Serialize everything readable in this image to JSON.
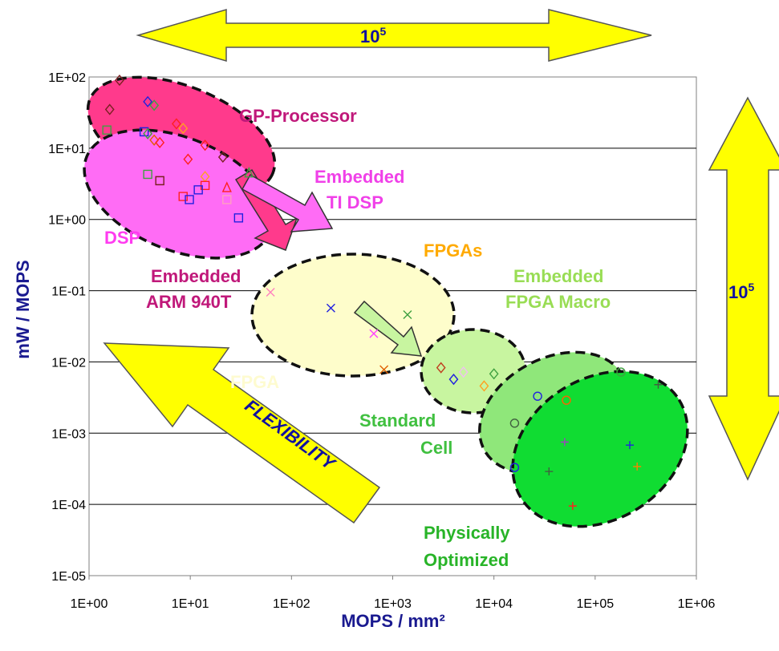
{
  "chart_data": {
    "type": "scatter",
    "xlabel": "MOPS / mm²",
    "ylabel": "mW / MOPS",
    "x_scale": "log",
    "y_scale": "log",
    "xlim": [
      1,
      1000000
    ],
    "ylim": [
      1e-05,
      100
    ],
    "grid": "horizontal",
    "x_ticks": [
      "1E+00",
      "1E+01",
      "1E+02",
      "1E+03",
      "1E+04",
      "1E+05",
      "1E+06"
    ],
    "y_ticks": [
      "1E+02",
      "1E+01",
      "1E+00",
      "1E-01",
      "1E-02",
      "1E-03",
      "1E-04",
      "1E-05"
    ],
    "regions": [
      {
        "name": "GP-Processor",
        "color": "#ff3a8c"
      },
      {
        "name": "DSP",
        "color": "#ff6cf5"
      },
      {
        "name": "FPGAs",
        "color": "#fefdcb"
      },
      {
        "name": "Embedded FPGA Macro",
        "color": "#c8f5a0"
      },
      {
        "name": "Standard Cell",
        "color": "#8fe77a"
      },
      {
        "name": "Physically Optimized",
        "color": "#10dc32"
      }
    ],
    "labels": {
      "gp": "GP-Processor",
      "embedded_ti_1": "Embedded",
      "embedded_ti_2": "TI DSP",
      "dsp": "DSP",
      "fpgas": "FPGAs",
      "embedded_arm_1": "Embedded",
      "embedded_arm_2": "ARM 940T",
      "fpga_faded": "FPGA",
      "efm_1": "Embedded",
      "efm_2": "FPGA Macro",
      "std_1": "Standard",
      "std_2": "Cell",
      "phys_1": "Physically",
      "phys_2": "Optimized",
      "flexibility": "FLEXIBILITY",
      "range_top": "10",
      "range_top_exp": "5",
      "range_right": "10",
      "range_right_exp": "5"
    },
    "points": [
      {
        "x": 2.0,
        "y": 90,
        "m": "diamond",
        "c": "#7a2020"
      },
      {
        "x": 1.6,
        "y": 35,
        "m": "diamond",
        "c": "#7a2020"
      },
      {
        "x": 3.8,
        "y": 45,
        "m": "diamond",
        "c": "#2020e0"
      },
      {
        "x": 4.4,
        "y": 40,
        "m": "diamond",
        "c": "#40a040"
      },
      {
        "x": 1.5,
        "y": 18,
        "m": "square",
        "c": "#40a040"
      },
      {
        "x": 3.5,
        "y": 17,
        "m": "square",
        "c": "#2020e0"
      },
      {
        "x": 3.8,
        "y": 16,
        "m": "diamond",
        "c": "#40a040"
      },
      {
        "x": 4.4,
        "y": 13,
        "m": "diamond",
        "c": "#e06000"
      },
      {
        "x": 5.0,
        "y": 12,
        "m": "diamond",
        "c": "#ff2020"
      },
      {
        "x": 7.3,
        "y": 22,
        "m": "diamond",
        "c": "#ff2020"
      },
      {
        "x": 8.5,
        "y": 19,
        "m": "diamond",
        "c": "#ffa020"
      },
      {
        "x": 14,
        "y": 11,
        "m": "diamond",
        "c": "#ff2020"
      },
      {
        "x": 21,
        "y": 7.5,
        "m": "diamond",
        "c": "#7a2020"
      },
      {
        "x": 9.5,
        "y": 7,
        "m": "diamond",
        "c": "#ff2020"
      },
      {
        "x": 3.8,
        "y": 4.3,
        "m": "square",
        "c": "#40a040"
      },
      {
        "x": 5.0,
        "y": 3.5,
        "m": "square",
        "c": "#7a2020"
      },
      {
        "x": 14,
        "y": 4.0,
        "m": "diamond",
        "c": "#ffa020"
      },
      {
        "x": 14,
        "y": 3.0,
        "m": "square",
        "c": "#ff2020"
      },
      {
        "x": 23,
        "y": 2.8,
        "m": "triangle",
        "c": "#ff2020"
      },
      {
        "x": 38,
        "y": 4.5,
        "m": "triangle",
        "c": "#40a040"
      },
      {
        "x": 12,
        "y": 2.6,
        "m": "square",
        "c": "#2020e0"
      },
      {
        "x": 8.5,
        "y": 2.1,
        "m": "square",
        "c": "#ff2020"
      },
      {
        "x": 9.8,
        "y": 1.9,
        "m": "square",
        "c": "#2020e0"
      },
      {
        "x": 23,
        "y": 1.9,
        "m": "square",
        "c": "#ffa0c0"
      },
      {
        "x": 30,
        "y": 1.05,
        "m": "square",
        "c": "#2020e0"
      },
      {
        "x": 62,
        "y": 0.095,
        "m": "x",
        "c": "#ff80c0"
      },
      {
        "x": 245,
        "y": 0.057,
        "m": "x",
        "c": "#2020e0"
      },
      {
        "x": 1400,
        "y": 0.046,
        "m": "x",
        "c": "#40a040"
      },
      {
        "x": 650,
        "y": 0.025,
        "m": "x",
        "c": "#ff40ff"
      },
      {
        "x": 820,
        "y": 0.0078,
        "m": "x",
        "c": "#e06000"
      },
      {
        "x": 3000,
        "y": 0.0083,
        "m": "diamond",
        "c": "#c04020"
      },
      {
        "x": 4000,
        "y": 0.0057,
        "m": "diamond",
        "c": "#2020e0"
      },
      {
        "x": 5000,
        "y": 0.0072,
        "m": "diamond",
        "c": "#f0c0f0"
      },
      {
        "x": 8000,
        "y": 0.0046,
        "m": "diamond",
        "c": "#ffa020"
      },
      {
        "x": 10000,
        "y": 0.0068,
        "m": "diamond",
        "c": "#40a040"
      },
      {
        "x": 180000,
        "y": 0.0072,
        "m": "circle",
        "c": "#40a040"
      },
      {
        "x": 27000,
        "y": 0.0033,
        "m": "circle",
        "c": "#2020e0"
      },
      {
        "x": 52000,
        "y": 0.0029,
        "m": "circle",
        "c": "#ff6000"
      },
      {
        "x": 16000,
        "y": 0.00138,
        "m": "circle",
        "c": "#406040"
      },
      {
        "x": 16000,
        "y": 0.00033,
        "m": "circle",
        "c": "#2020e0"
      },
      {
        "x": 420000,
        "y": 0.0048,
        "m": "plus",
        "c": "#406040"
      },
      {
        "x": 50000,
        "y": 0.00075,
        "m": "plus",
        "c": "#a040c0"
      },
      {
        "x": 220000,
        "y": 0.00068,
        "m": "plus",
        "c": "#2020e0"
      },
      {
        "x": 35000,
        "y": 0.00029,
        "m": "plus",
        "c": "#406040"
      },
      {
        "x": 260000,
        "y": 0.00034,
        "m": "plus",
        "c": "#ff8000"
      },
      {
        "x": 60000,
        "y": 9.5e-05,
        "m": "plus",
        "c": "#ff2020"
      }
    ]
  }
}
